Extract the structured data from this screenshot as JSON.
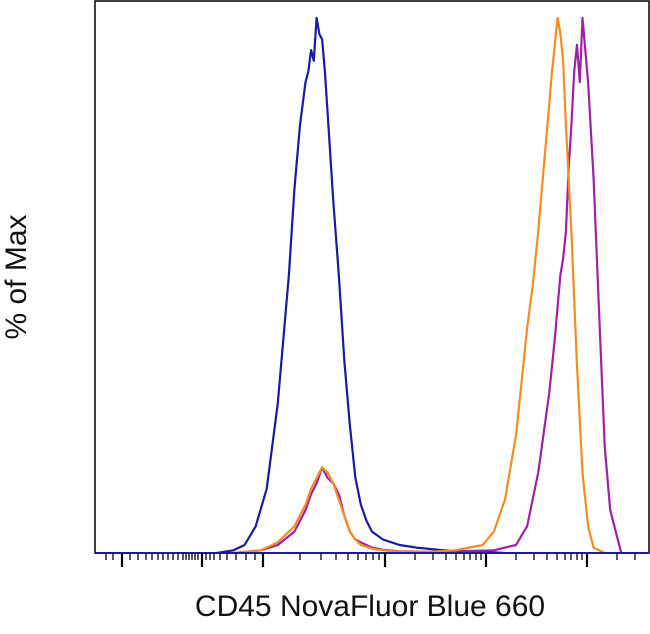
{
  "chart_data": {
    "type": "line",
    "xlabel": "CD45 NovaFluor Blue 660",
    "ylabel": "% of Max",
    "x_scale": "biexponential",
    "grid": false,
    "legend": "none",
    "ylim": [
      0,
      100
    ],
    "series": [
      {
        "color": "#1a1aa0",
        "x": [
          0.22,
          0.25,
          0.27,
          0.29,
          0.31,
          0.33,
          0.35,
          0.36,
          0.37,
          0.38,
          0.385,
          0.39,
          0.395,
          0.4,
          0.405,
          0.41,
          0.415,
          0.42,
          0.43,
          0.44,
          0.45,
          0.46,
          0.47,
          0.48,
          0.49,
          0.5,
          0.52,
          0.55,
          0.58,
          0.62,
          0.66,
          0.7,
          0.74
        ],
        "y": [
          0,
          0.5,
          1.5,
          5,
          12,
          28,
          52,
          68,
          80,
          88,
          90,
          94,
          92,
          100,
          97,
          96,
          90,
          82,
          66,
          52,
          36,
          24,
          14,
          9,
          6,
          4,
          2.5,
          1.5,
          1,
          0.6,
          0.3,
          0.2,
          0
        ]
      },
      {
        "color": "#a020a8",
        "x": [
          0.25,
          0.3,
          0.33,
          0.36,
          0.38,
          0.39,
          0.4,
          0.41,
          0.42,
          0.43,
          0.44,
          0.45,
          0.46,
          0.47,
          0.48,
          0.5,
          0.52,
          0.55,
          0.6,
          0.65,
          0.72,
          0.76,
          0.78,
          0.8,
          0.82,
          0.83,
          0.84,
          0.845,
          0.85,
          0.855,
          0.86,
          0.865,
          0.87,
          0.875,
          0.88,
          0.89,
          0.9,
          0.91,
          0.92,
          0.93,
          0.95
        ],
        "y": [
          0,
          0.5,
          1.5,
          4,
          8,
          11,
          13,
          16,
          14,
          13,
          11,
          7,
          4,
          2.5,
          2,
          1,
          0.6,
          0.3,
          0.2,
          0.3,
          0.5,
          1.5,
          5,
          15,
          30,
          40,
          52,
          55,
          60,
          72,
          80,
          90,
          95,
          88,
          100,
          88,
          70,
          45,
          20,
          8,
          0
        ]
      },
      {
        "color": "#f58c1e",
        "x": [
          0.25,
          0.3,
          0.33,
          0.36,
          0.38,
          0.39,
          0.4,
          0.41,
          0.42,
          0.43,
          0.44,
          0.45,
          0.46,
          0.47,
          0.48,
          0.5,
          0.52,
          0.55,
          0.6,
          0.65,
          0.7,
          0.72,
          0.74,
          0.76,
          0.77,
          0.78,
          0.79,
          0.8,
          0.81,
          0.82,
          0.825,
          0.83,
          0.835,
          0.84,
          0.845,
          0.85,
          0.86,
          0.87,
          0.88,
          0.89,
          0.9,
          0.92
        ],
        "y": [
          0,
          0.5,
          2,
          5,
          9,
          12,
          14,
          16,
          15,
          13,
          10,
          7,
          4,
          2.5,
          1.5,
          0.8,
          0.5,
          0.2,
          0.2,
          0.5,
          1.5,
          4,
          10,
          22,
          32,
          42,
          50,
          60,
          72,
          84,
          90,
          95,
          100,
          97,
          92,
          80,
          60,
          35,
          15,
          5,
          1,
          0
        ]
      }
    ]
  }
}
